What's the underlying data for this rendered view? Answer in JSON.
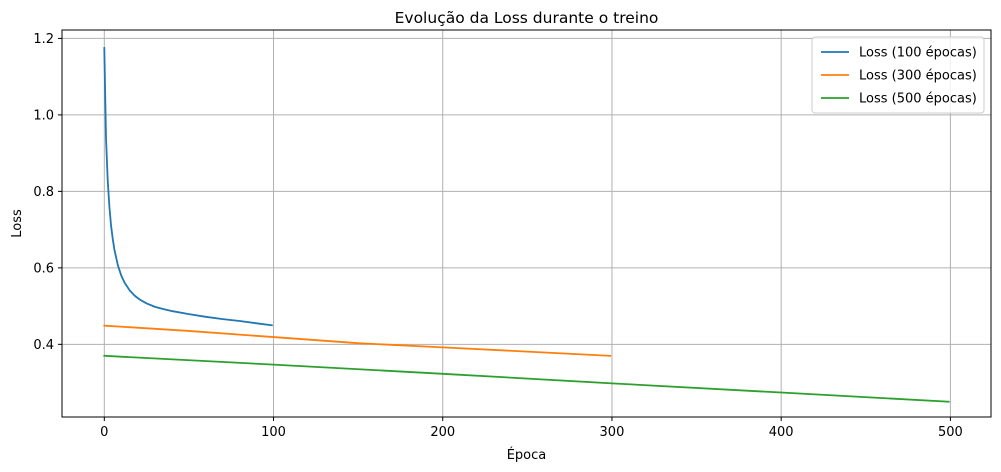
{
  "chart_data": {
    "type": "line",
    "title": "Evolução da Loss durante o treino",
    "xlabel": "Época",
    "ylabel": "Loss",
    "xlim": [
      -25,
      524
    ],
    "ylim": [
      0.21,
      1.222
    ],
    "xticks": [
      0,
      100,
      200,
      300,
      400,
      500
    ],
    "xtick_labels": [
      "0",
      "100",
      "200",
      "300",
      "400",
      "500"
    ],
    "yticks": [
      0.4,
      0.6,
      0.8,
      1.0,
      1.2
    ],
    "ytick_labels": [
      "0.4",
      "0.6",
      "0.8",
      "1.0",
      "1.2"
    ],
    "grid": true,
    "legend_position": "upper right",
    "series": [
      {
        "name": "Loss (100 épocas)",
        "color": "#1f77b4",
        "x": [
          0,
          1,
          2,
          3,
          4,
          5,
          6,
          8,
          10,
          12,
          15,
          18,
          21,
          25,
          30,
          35,
          40,
          50,
          60,
          70,
          80,
          90,
          99
        ],
        "y": [
          1.175,
          0.94,
          0.83,
          0.76,
          0.71,
          0.675,
          0.647,
          0.607,
          0.58,
          0.561,
          0.541,
          0.527,
          0.517,
          0.507,
          0.498,
          0.492,
          0.487,
          0.479,
          0.472,
          0.466,
          0.461,
          0.455,
          0.45
        ]
      },
      {
        "name": "Loss (300 épocas)",
        "color": "#ff7f0e",
        "x": [
          0,
          50,
          100,
          150,
          200,
          250,
          299
        ],
        "y": [
          0.449,
          0.435,
          0.419,
          0.403,
          0.392,
          0.381,
          0.37
        ]
      },
      {
        "name": "Loss (500 épocas)",
        "color": "#2ca02c",
        "x": [
          0,
          100,
          200,
          300,
          400,
          499
        ],
        "y": [
          0.37,
          0.347,
          0.323,
          0.298,
          0.274,
          0.25
        ]
      }
    ]
  },
  "colors": {
    "grid": "#b0b0b0",
    "axes": "#000000",
    "legend_border": "#cccccc"
  }
}
